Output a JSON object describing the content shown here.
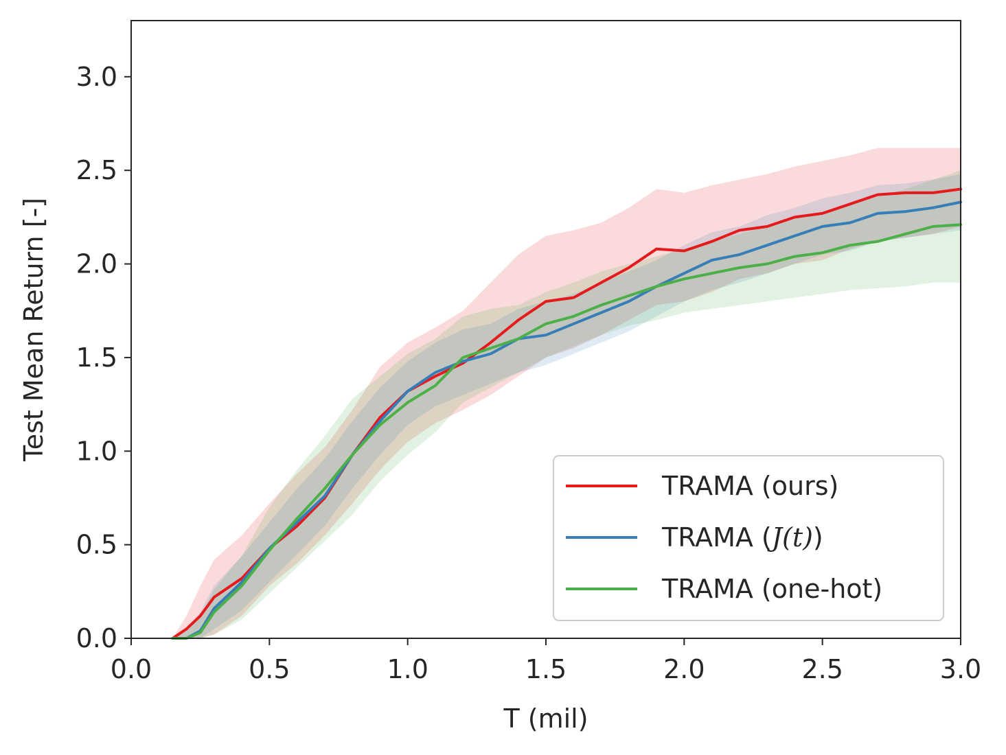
{
  "chart_data": {
    "type": "line",
    "title": "",
    "xlabel": "T (mil)",
    "ylabel": "Test Mean Return [-]",
    "xlim": [
      0.0,
      3.0
    ],
    "ylim": [
      0.0,
      3.3
    ],
    "xticks": [
      "0.0",
      "0.5",
      "1.0",
      "1.5",
      "2.0",
      "2.5",
      "3.0"
    ],
    "yticks": [
      "0.0",
      "0.5",
      "1.0",
      "1.5",
      "2.0",
      "2.5",
      "3.0"
    ],
    "grid": false,
    "legend_position": "lower-right",
    "x": [
      0.15,
      0.2,
      0.25,
      0.3,
      0.4,
      0.5,
      0.6,
      0.7,
      0.8,
      0.9,
      1.0,
      1.1,
      1.2,
      1.3,
      1.4,
      1.5,
      1.6,
      1.7,
      1.8,
      1.9,
      2.0,
      2.1,
      2.2,
      2.3,
      2.4,
      2.5,
      2.6,
      2.7,
      2.8,
      2.9,
      3.0
    ],
    "series": [
      {
        "name": "TRAMA (ours)",
        "color": "#e41a1c",
        "values": [
          0.0,
          0.05,
          0.12,
          0.22,
          0.32,
          0.48,
          0.6,
          0.75,
          0.98,
          1.18,
          1.32,
          1.4,
          1.47,
          1.58,
          1.7,
          1.8,
          1.82,
          1.9,
          1.98,
          2.08,
          2.07,
          2.12,
          2.18,
          2.2,
          2.25,
          2.27,
          2.32,
          2.37,
          2.38,
          2.38,
          2.4
        ],
        "lower": [
          0.0,
          0.0,
          0.0,
          0.02,
          0.12,
          0.28,
          0.4,
          0.55,
          0.72,
          0.9,
          1.05,
          1.15,
          1.22,
          1.3,
          1.4,
          1.5,
          1.55,
          1.62,
          1.7,
          1.78,
          1.8,
          1.85,
          1.92,
          1.95,
          2.0,
          2.02,
          2.08,
          2.12,
          2.14,
          2.16,
          2.2
        ],
        "upper": [
          0.0,
          0.12,
          0.28,
          0.42,
          0.55,
          0.72,
          0.88,
          1.02,
          1.22,
          1.45,
          1.58,
          1.66,
          1.75,
          1.9,
          2.05,
          2.15,
          2.18,
          2.22,
          2.3,
          2.4,
          2.38,
          2.42,
          2.45,
          2.48,
          2.52,
          2.55,
          2.58,
          2.62,
          2.62,
          2.62,
          2.62
        ]
      },
      {
        "name": "TRAMA (J(t))",
        "color": "#377eb8",
        "values": [
          0.0,
          0.0,
          0.04,
          0.16,
          0.3,
          0.48,
          0.62,
          0.76,
          0.98,
          1.16,
          1.32,
          1.42,
          1.48,
          1.52,
          1.6,
          1.62,
          1.68,
          1.74,
          1.8,
          1.88,
          1.95,
          2.02,
          2.05,
          2.1,
          2.15,
          2.2,
          2.22,
          2.27,
          2.28,
          2.3,
          2.33
        ],
        "lower": [
          0.0,
          0.0,
          0.0,
          0.05,
          0.15,
          0.3,
          0.45,
          0.6,
          0.8,
          0.98,
          1.14,
          1.24,
          1.3,
          1.36,
          1.42,
          1.46,
          1.52,
          1.58,
          1.64,
          1.72,
          1.8,
          1.86,
          1.9,
          1.95,
          2.0,
          2.05,
          2.07,
          2.12,
          2.14,
          2.16,
          2.18
        ],
        "upper": [
          0.0,
          0.05,
          0.14,
          0.28,
          0.44,
          0.62,
          0.8,
          0.96,
          1.16,
          1.34,
          1.48,
          1.58,
          1.65,
          1.68,
          1.76,
          1.8,
          1.84,
          1.9,
          1.96,
          2.02,
          2.1,
          2.17,
          2.2,
          2.26,
          2.3,
          2.35,
          2.38,
          2.42,
          2.43,
          2.45,
          2.48
        ]
      },
      {
        "name": "TRAMA (one-hot)",
        "color": "#4daf4a",
        "values": [
          0.0,
          0.0,
          0.03,
          0.14,
          0.28,
          0.47,
          0.64,
          0.8,
          0.98,
          1.14,
          1.26,
          1.35,
          1.5,
          1.55,
          1.6,
          1.68,
          1.72,
          1.78,
          1.83,
          1.88,
          1.92,
          1.95,
          1.98,
          2.0,
          2.04,
          2.06,
          2.1,
          2.12,
          2.16,
          2.2,
          2.21
        ],
        "lower": [
          0.0,
          0.0,
          0.0,
          0.02,
          0.1,
          0.24,
          0.38,
          0.52,
          0.66,
          0.84,
          0.98,
          1.1,
          1.26,
          1.34,
          1.42,
          1.5,
          1.56,
          1.62,
          1.67,
          1.7,
          1.74,
          1.76,
          1.78,
          1.8,
          1.82,
          1.84,
          1.86,
          1.87,
          1.88,
          1.9,
          1.9
        ],
        "upper": [
          0.0,
          0.04,
          0.12,
          0.26,
          0.44,
          0.7,
          0.9,
          1.08,
          1.28,
          1.4,
          1.52,
          1.6,
          1.72,
          1.76,
          1.78,
          1.85,
          1.9,
          1.96,
          2.0,
          2.04,
          2.08,
          2.12,
          2.16,
          2.2,
          2.24,
          2.28,
          2.32,
          2.36,
          2.4,
          2.45,
          2.5
        ]
      }
    ],
    "legend": {
      "entries": [
        {
          "prefix": "TRAMA (",
          "text": "ours",
          "suffix": ")",
          "math": false
        },
        {
          "prefix": "TRAMA (",
          "text": "J(t)",
          "suffix": ")",
          "math": true
        },
        {
          "prefix": "TRAMA (",
          "text": "one-hot",
          "suffix": ")",
          "math": false
        }
      ]
    }
  }
}
